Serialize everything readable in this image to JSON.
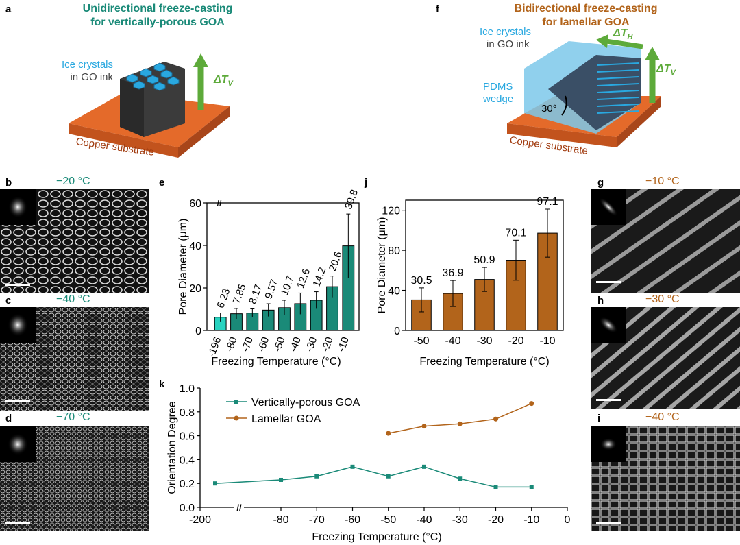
{
  "panels": {
    "a": {
      "label": "a",
      "title_line1": "Unidirectional freeze-casting",
      "title_line2": "for vertically-porous GOA",
      "ice_line1": "Ice crystals",
      "ice_line2": "in GO ink",
      "delta_main": "ΔT",
      "delta_sub": "V",
      "substrate": "Copper substrate"
    },
    "f": {
      "label": "f",
      "title_line1": "Bidirectional freeze-casting",
      "title_line2": "for lamellar GOA",
      "ice_line1": "Ice crystals",
      "ice_line2": "in GO ink",
      "pdms_line1": "PDMS",
      "pdms_line2": "wedge",
      "angle": "30°",
      "deltaH_main": "ΔT",
      "deltaH_sub": "H",
      "deltaV_main": "ΔT",
      "deltaV_sub": "V",
      "substrate": "Copper substrate"
    },
    "b": {
      "label": "b",
      "temp": "−20 °C"
    },
    "c": {
      "label": "c",
      "temp": "−40 °C"
    },
    "d": {
      "label": "d",
      "temp": "−70 °C"
    },
    "g": {
      "label": "g",
      "temp": "−10 °C"
    },
    "h": {
      "label": "h",
      "temp": "−30 °C"
    },
    "i": {
      "label": "i",
      "temp": "−40 °C"
    },
    "e": {
      "label": "e"
    },
    "j": {
      "label": "j"
    },
    "k": {
      "label": "k"
    }
  },
  "colors": {
    "teal": "#1a8a78",
    "teal_light": "#27d3c0",
    "brown": "#b2641b",
    "copper": "#e46a2a",
    "ice": "#29a8e0",
    "green_arrow": "#5daa3a"
  },
  "chart_data": [
    {
      "id": "e",
      "type": "bar",
      "categories": [
        "-196",
        "-80",
        "-70",
        "-60",
        "-50",
        "-40",
        "-30",
        "-20",
        "-10"
      ],
      "values": [
        6.23,
        7.85,
        8.17,
        9.57,
        10.7,
        12.6,
        14.2,
        20.6,
        39.8
      ],
      "value_labels": [
        "6.23",
        "7.85",
        "8.17",
        "9.57",
        "10.7",
        "12.6",
        "14.2",
        "20.6",
        "39.8"
      ],
      "errors": [
        2,
        2.5,
        2,
        3,
        3.5,
        5,
        4,
        5,
        15
      ],
      "ylabel": "Pore Diameter (μm)",
      "xlabel": "Freezing Temperature (°C)",
      "ylim": [
        0,
        60
      ],
      "yticks": [
        "0",
        "20",
        "40",
        "60"
      ],
      "axis_break": "//"
    },
    {
      "id": "j",
      "type": "bar",
      "categories": [
        "-50",
        "-40",
        "-30",
        "-20",
        "-10"
      ],
      "values": [
        30.5,
        36.9,
        50.9,
        70.1,
        97.1
      ],
      "value_labels": [
        "30.5",
        "36.9",
        "50.9",
        "70.1",
        "97.1"
      ],
      "errors": [
        12,
        13,
        12,
        20,
        24
      ],
      "ylabel": "Pore Diameter (μm)",
      "xlabel": "Freezing Temperature (°C)",
      "ylim": [
        0,
        130
      ],
      "yticks": [
        "0",
        "40",
        "80",
        "120"
      ]
    },
    {
      "id": "k",
      "type": "line",
      "ylabel": "Orientation Degree",
      "xlabel": "Freezing Temperature (°C)",
      "ylim": [
        0,
        1.0
      ],
      "yticks": [
        "0.0",
        "0.2",
        "0.4",
        "0.6",
        "0.8",
        "1.0"
      ],
      "xticks": [
        "-200",
        "-80",
        "-70",
        "-60",
        "-50",
        "-40",
        "-30",
        "-20",
        "-10",
        "0"
      ],
      "axis_break": "//",
      "series": [
        {
          "name": "Vertically-porous GOA",
          "marker": "square",
          "x": [
            -196,
            -80,
            -70,
            -60,
            -50,
            -40,
            -30,
            -20,
            -10
          ],
          "y": [
            0.2,
            0.23,
            0.26,
            0.34,
            0.26,
            0.34,
            0.24,
            0.17,
            0.17
          ]
        },
        {
          "name": "Lamellar GOA",
          "marker": "circle",
          "x": [
            -50,
            -40,
            -30,
            -20,
            -10
          ],
          "y": [
            0.62,
            0.68,
            0.7,
            0.74,
            0.87
          ]
        }
      ]
    }
  ]
}
